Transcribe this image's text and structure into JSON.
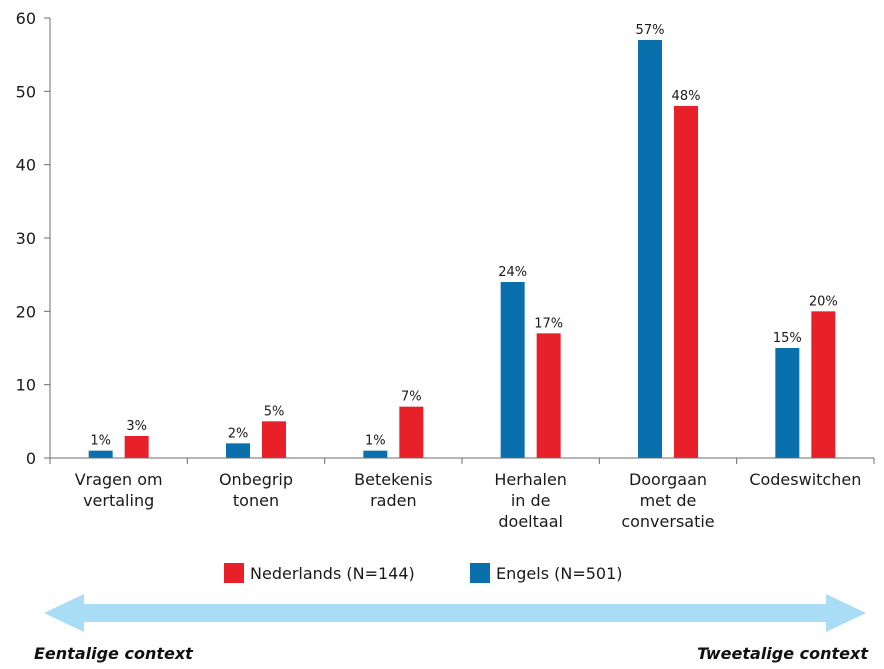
{
  "chart_data": {
    "type": "bar",
    "categories": [
      [
        "Vragen om",
        "vertaling"
      ],
      [
        "Onbegrip",
        "tonen"
      ],
      [
        "Betekenis",
        "raden"
      ],
      [
        "Herhalen",
        "in de",
        "doeltaal"
      ],
      [
        "Doorgaan",
        "met de",
        "conversatie"
      ],
      [
        "Codeswitchen"
      ]
    ],
    "series": [
      {
        "name": "Engels (N=501)",
        "color": "#0a6fad",
        "values": [
          1,
          2,
          1,
          24,
          57,
          15
        ],
        "labels": [
          "1%",
          "2%",
          "1%",
          "24%",
          "57%",
          "15%"
        ]
      },
      {
        "name": "Nederlands (N=144)",
        "color": "#e8202a",
        "values": [
          3,
          5,
          7,
          17,
          48,
          20
        ],
        "labels": [
          "3%",
          "5%",
          "7%",
          "17%",
          "48%",
          "20%"
        ]
      }
    ],
    "legend_order": [
      1,
      0
    ],
    "legend_placement": "bottom-center",
    "yticks": [
      "0",
      "10",
      "20",
      "30",
      "40",
      "50",
      "60"
    ],
    "ylim": [
      0,
      60
    ],
    "grid": false,
    "context_arrow": {
      "left_label": "Eentalige context",
      "right_label": "Tweetalige context",
      "color": "#a9dcf5"
    }
  }
}
